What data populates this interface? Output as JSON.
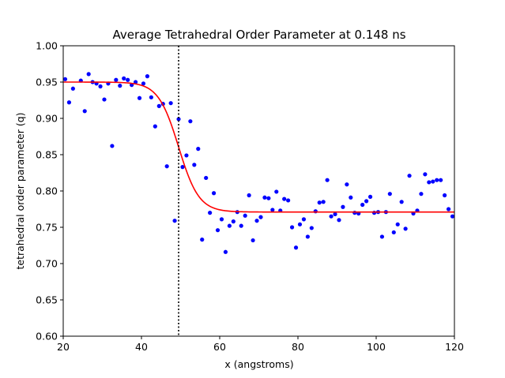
{
  "chart_data": {
    "type": "scatter",
    "title": "Average Tetrahedral Order Parameter at 0.148 ns",
    "xlabel": "x (angstroms)",
    "ylabel": "tetrahedral order parameter (q)",
    "xlim": [
      20,
      120
    ],
    "ylim": [
      0.6,
      1.0
    ],
    "xticks": [
      "20",
      "40",
      "60",
      "80",
      "100",
      "120"
    ],
    "yticks": [
      "0.60",
      "0.65",
      "0.70",
      "0.75",
      "0.80",
      "0.85",
      "0.90",
      "0.95",
      "1.00"
    ],
    "grid": false,
    "legend": "none",
    "colors": {
      "points": "#0000ff",
      "fit": "#ff0000",
      "marker_line": "#000000"
    },
    "vertical_marker_x": 49.5,
    "fit": {
      "type": "sigmoid",
      "high": 0.95,
      "low": 0.771,
      "midpoint": 49.5,
      "width": 2.6
    },
    "series": [
      {
        "marker": "point",
        "x": [
          20.5,
          21.5,
          22.5,
          24.5,
          25.5,
          26.5,
          27.5,
          28.5,
          29.5,
          30.5,
          31.5,
          32.5,
          33.5,
          34.5,
          35.5,
          36.5,
          37.5,
          38.5,
          39.5,
          40.5,
          41.5,
          42.5,
          43.5,
          44.5,
          45.5,
          46.5,
          47.5,
          48.5,
          49.5,
          50.5,
          51.5,
          52.5,
          53.5,
          54.5,
          55.5,
          56.5,
          57.5,
          58.5,
          59.5,
          60.5,
          61.5,
          62.5,
          63.5,
          64.5,
          65.5,
          66.5,
          67.5,
          68.5,
          69.5,
          70.5,
          71.5,
          72.5,
          73.5,
          74.5,
          75.5,
          76.5,
          77.5,
          78.5,
          79.5,
          80.5,
          81.5,
          82.5,
          83.5,
          84.5,
          85.5,
          86.5,
          87.5,
          88.5,
          89.5,
          90.5,
          91.5,
          92.5,
          93.5,
          94.5,
          95.5,
          96.5,
          97.5,
          98.5,
          99.5,
          100.5,
          101.5,
          102.5,
          103.5,
          104.5,
          105.5,
          106.5,
          107.5,
          108.5,
          109.5,
          110.5,
          111.5,
          112.5,
          113.5,
          114.5,
          115.5,
          116.5,
          117.5,
          118.5,
          119.5
        ],
        "y": [
          0.954,
          0.922,
          0.941,
          0.952,
          0.91,
          0.961,
          0.95,
          0.948,
          0.944,
          0.926,
          0.948,
          0.862,
          0.953,
          0.945,
          0.955,
          0.953,
          0.946,
          0.95,
          0.928,
          0.948,
          0.958,
          0.929,
          0.889,
          0.917,
          0.92,
          0.834,
          0.921,
          0.759,
          0.899,
          0.833,
          0.849,
          0.896,
          0.836,
          0.858,
          0.733,
          0.818,
          0.77,
          0.797,
          0.746,
          0.761,
          0.716,
          0.752,
          0.758,
          0.771,
          0.752,
          0.766,
          0.794,
          0.732,
          0.759,
          0.764,
          0.791,
          0.79,
          0.774,
          0.799,
          0.773,
          0.789,
          0.787,
          0.75,
          0.722,
          0.754,
          0.761,
          0.737,
          0.749,
          0.772,
          0.784,
          0.785,
          0.815,
          0.765,
          0.768,
          0.76,
          0.778,
          0.809,
          0.791,
          0.77,
          0.769,
          0.781,
          0.786,
          0.792,
          0.77,
          0.771,
          0.737,
          0.771,
          0.796,
          0.743,
          0.754,
          0.785,
          0.748,
          0.821,
          0.769,
          0.773,
          0.796,
          0.823,
          0.812,
          0.813,
          0.815,
          0.815,
          0.794,
          0.775,
          0.765
        ]
      }
    ]
  }
}
